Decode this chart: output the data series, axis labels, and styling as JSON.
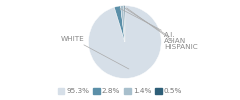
{
  "slices": [
    95.3,
    2.8,
    1.4,
    0.5
  ],
  "labels": [
    "WHITE",
    "A.I.",
    "ASIAN",
    "HISPANIC"
  ],
  "colors": [
    "#d6dfe8",
    "#5b8fa8",
    "#a8bfcc",
    "#2e5f78"
  ],
  "legend_labels": [
    "95.3%",
    "2.8%",
    "1.4%",
    "0.5%"
  ],
  "legend_colors": [
    "#d6dfe8",
    "#5b8fa8",
    "#a8bfcc",
    "#2e5f78"
  ],
  "startangle": 90,
  "font_size": 5.2,
  "legend_font_size": 5.2,
  "text_color": "#888888",
  "line_color": "#aaaaaa"
}
